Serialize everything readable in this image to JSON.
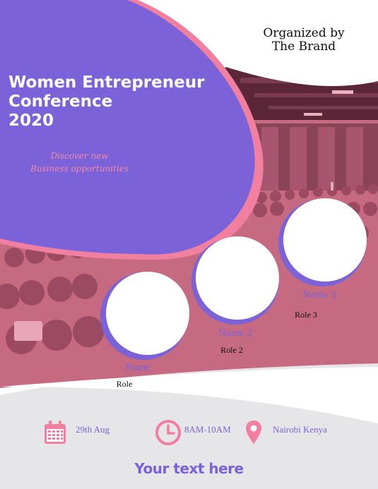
{
  "event": {
    "title_lines": [
      "Women Entrepreneur",
      "Conference",
      "2020"
    ],
    "tagline_lines": [
      "Discover new",
      "Business opportunities"
    ]
  },
  "organizer": {
    "lines": [
      "Organized by",
      "The Brand"
    ]
  },
  "speakers": [
    {
      "name": "Name",
      "role": "Role"
    },
    {
      "name": "Name 2",
      "role": "Role 2"
    },
    {
      "name": "Name 3",
      "role": "Role 3"
    }
  ],
  "details": {
    "date": "29th Aug",
    "time": "8AM-10AM",
    "location": "Nairobi Kenya"
  },
  "icons": {
    "date": "calendar-icon",
    "time": "clock-icon",
    "location": "map-pin-icon"
  },
  "footer": {
    "text": "Your text here"
  },
  "colors": {
    "purple": "#7b62d8",
    "pink": "#f07fa0",
    "photo_tint": "#c2667f",
    "gray_band": "#e6e6e8"
  }
}
